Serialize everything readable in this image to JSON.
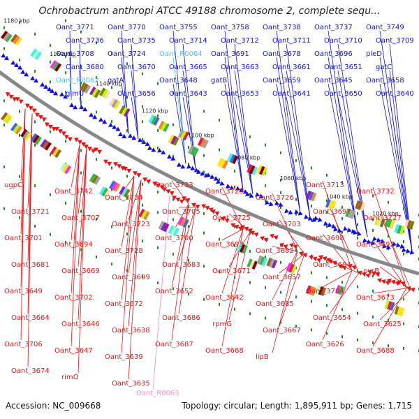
{
  "title": "Ochrobactrum anthropi ATCC 49188 chromosome 2, complete sequ...",
  "footer": {
    "accession": "Accession: NC_009668",
    "summary": "Topology: circular; Length: 1,895,911 bp; Genes: 1,715"
  },
  "colors": {
    "forward": "#1010e0",
    "reverse": "#ee1111",
    "rna": "#33ccee",
    "pseudo": "#ff88cc",
    "backbone": "#888888",
    "tick": "#1a8a1a"
  },
  "kbp_ticks": [
    "1180 kbp",
    "1160 kbp",
    "1140 kbp",
    "1120 kbp",
    "1100 kbp",
    "1080 kbp",
    "1060 kbp",
    "1040 kbp",
    "1020 kbp"
  ],
  "top_labels": [
    {
      "text": "Oant_3771",
      "kind": "forward"
    },
    {
      "text": "Oant_3770",
      "kind": "forward"
    },
    {
      "text": "Oant_3755",
      "kind": "forward"
    },
    {
      "text": "Oant_3758",
      "kind": "forward"
    },
    {
      "text": "Oant_3738",
      "kind": "forward"
    },
    {
      "text": "Oant_3737",
      "kind": "forward"
    },
    {
      "text": "Oant_3749",
      "kind": "forward"
    },
    {
      "text": "Oant_3736",
      "kind": "forward"
    },
    {
      "text": "Oant_3735",
      "kind": "forward"
    },
    {
      "text": "Oant_3714",
      "kind": "forward"
    },
    {
      "text": "Oant_3712",
      "kind": "forward"
    },
    {
      "text": "Oant_3711",
      "kind": "forward"
    },
    {
      "text": "Oant_3710",
      "kind": "forward"
    },
    {
      "text": "Oant_3709",
      "kind": "forward"
    },
    {
      "text": "Oant_3708",
      "kind": "forward"
    },
    {
      "text": "Oant_3724",
      "kind": "forward"
    },
    {
      "text": "Oant_R0064",
      "kind": "rna"
    },
    {
      "text": "Oant_3691",
      "kind": "forward"
    },
    {
      "text": "Oant_3678",
      "kind": "forward"
    },
    {
      "text": "Oant_3696",
      "kind": "forward"
    },
    {
      "text": "pleD",
      "kind": "forward"
    },
    {
      "text": "Oant_3680",
      "kind": "forward"
    },
    {
      "text": "Oant_3670",
      "kind": "forward"
    },
    {
      "text": "Oant_3665",
      "kind": "forward"
    },
    {
      "text": "Oant_3663",
      "kind": "forward"
    },
    {
      "text": "Oant_3661",
      "kind": "forward"
    },
    {
      "text": "Oant_3651",
      "kind": "forward"
    },
    {
      "text": "gatC",
      "kind": "forward"
    },
    {
      "text": "Oant_R0062",
      "kind": "rna"
    },
    {
      "text": "gatA",
      "kind": "forward"
    },
    {
      "text": "Oant_3648",
      "kind": "forward"
    },
    {
      "text": "gatB",
      "kind": "forward"
    },
    {
      "text": "Oant_3659",
      "kind": "forward"
    },
    {
      "text": "Oant_3645",
      "kind": "forward"
    },
    {
      "text": "Oant_3658",
      "kind": "forward"
    },
    {
      "text": "glmU",
      "kind": "forward"
    },
    {
      "text": "Oant_3656",
      "kind": "forward"
    },
    {
      "text": "Oant_3643",
      "kind": "forward"
    },
    {
      "text": "Oant_3653",
      "kind": "forward"
    },
    {
      "text": "Oant_3641",
      "kind": "forward"
    },
    {
      "text": "Oant_3650",
      "kind": "forward"
    },
    {
      "text": "Oant_3640",
      "kind": "forward"
    }
  ],
  "bottom_labels": [
    {
      "text": "ugpC",
      "kind": "reverse"
    },
    {
      "text": "Oant_3742",
      "kind": "reverse"
    },
    {
      "text": "Oant_3734",
      "kind": "reverse"
    },
    {
      "text": "Oant_3733",
      "kind": "reverse"
    },
    {
      "text": "Oant_3729",
      "kind": "reverse"
    },
    {
      "text": "Oant_3726",
      "kind": "reverse"
    },
    {
      "text": "Oant_3713",
      "kind": "reverse"
    },
    {
      "text": "Oant_3732",
      "kind": "reverse"
    },
    {
      "text": "Oant_3721",
      "kind": "reverse"
    },
    {
      "text": "Oant_3707",
      "kind": "reverse"
    },
    {
      "text": "Oant_3723",
      "kind": "reverse"
    },
    {
      "text": "Oant_3705",
      "kind": "reverse"
    },
    {
      "text": "Oant_3725",
      "kind": "reverse"
    },
    {
      "text": "Oant_3703",
      "kind": "reverse"
    },
    {
      "text": "Oant_3697",
      "kind": "reverse"
    },
    {
      "text": "Oant_3727",
      "kind": "reverse"
    },
    {
      "text": "Oant_3701",
      "kind": "reverse"
    },
    {
      "text": "Oant_3694",
      "kind": "reverse"
    },
    {
      "text": "Oant_3728",
      "kind": "reverse"
    },
    {
      "text": "Oant_3700",
      "kind": "reverse"
    },
    {
      "text": "Oant_3693",
      "kind": "reverse"
    },
    {
      "text": "Oant_3682",
      "kind": "reverse"
    },
    {
      "text": "Oant_3698",
      "kind": "reverse"
    },
    {
      "text": "Oant_3692",
      "kind": "reverse"
    },
    {
      "text": "Oant_3681",
      "kind": "reverse"
    },
    {
      "text": "Oant_3669",
      "kind": "reverse"
    },
    {
      "text": "Oant_3699",
      "kind": "reverse"
    },
    {
      "text": "Oant_3683",
      "kind": "reverse"
    },
    {
      "text": "Oant_3671",
      "kind": "reverse"
    },
    {
      "text": "Oant_3657",
      "kind": "reverse"
    },
    {
      "text": "Oant_3684",
      "kind": "reverse"
    },
    {
      "text": "pyrB",
      "kind": "reverse"
    },
    {
      "text": "Oant_3649",
      "kind": "reverse"
    },
    {
      "text": "Oant_3702",
      "kind": "reverse"
    },
    {
      "text": "Oant_3672",
      "kind": "reverse"
    },
    {
      "text": "Oant_3652",
      "kind": "reverse"
    },
    {
      "text": "Oant_3642",
      "kind": "reverse"
    },
    {
      "text": "Oant_3685",
      "kind": "reverse"
    },
    {
      "text": "Oant_3704",
      "kind": "reverse"
    },
    {
      "text": "Oant_3673",
      "kind": "reverse"
    },
    {
      "text": "Oant_3664",
      "kind": "reverse"
    },
    {
      "text": "Oant_3646",
      "kind": "reverse"
    },
    {
      "text": "Oant_3638",
      "kind": "reverse"
    },
    {
      "text": "Oant_3686",
      "kind": "reverse"
    },
    {
      "text": "rpmG",
      "kind": "reverse"
    },
    {
      "text": "Oant_3667",
      "kind": "reverse"
    },
    {
      "text": "Oant_3654",
      "kind": "reverse"
    },
    {
      "text": "Oant_3625",
      "kind": "reverse"
    },
    {
      "text": "Oant_3706",
      "kind": "reverse"
    },
    {
      "text": "Oant_3647",
      "kind": "reverse"
    },
    {
      "text": "Oant_3639",
      "kind": "reverse"
    },
    {
      "text": "Oant_3687",
      "kind": "reverse"
    },
    {
      "text": "Oant_3668",
      "kind": "reverse"
    },
    {
      "text": "lipB",
      "kind": "reverse"
    },
    {
      "text": "Oant_3626",
      "kind": "reverse"
    },
    {
      "text": "Oant_3688",
      "kind": "reverse"
    },
    {
      "text": "Oant_3674",
      "kind": "reverse"
    },
    {
      "text": "rimO",
      "kind": "reverse"
    },
    {
      "text": "Oant_3635",
      "kind": "reverse"
    },
    {
      "text": "Oant_R0063",
      "kind": "pseudo"
    }
  ]
}
